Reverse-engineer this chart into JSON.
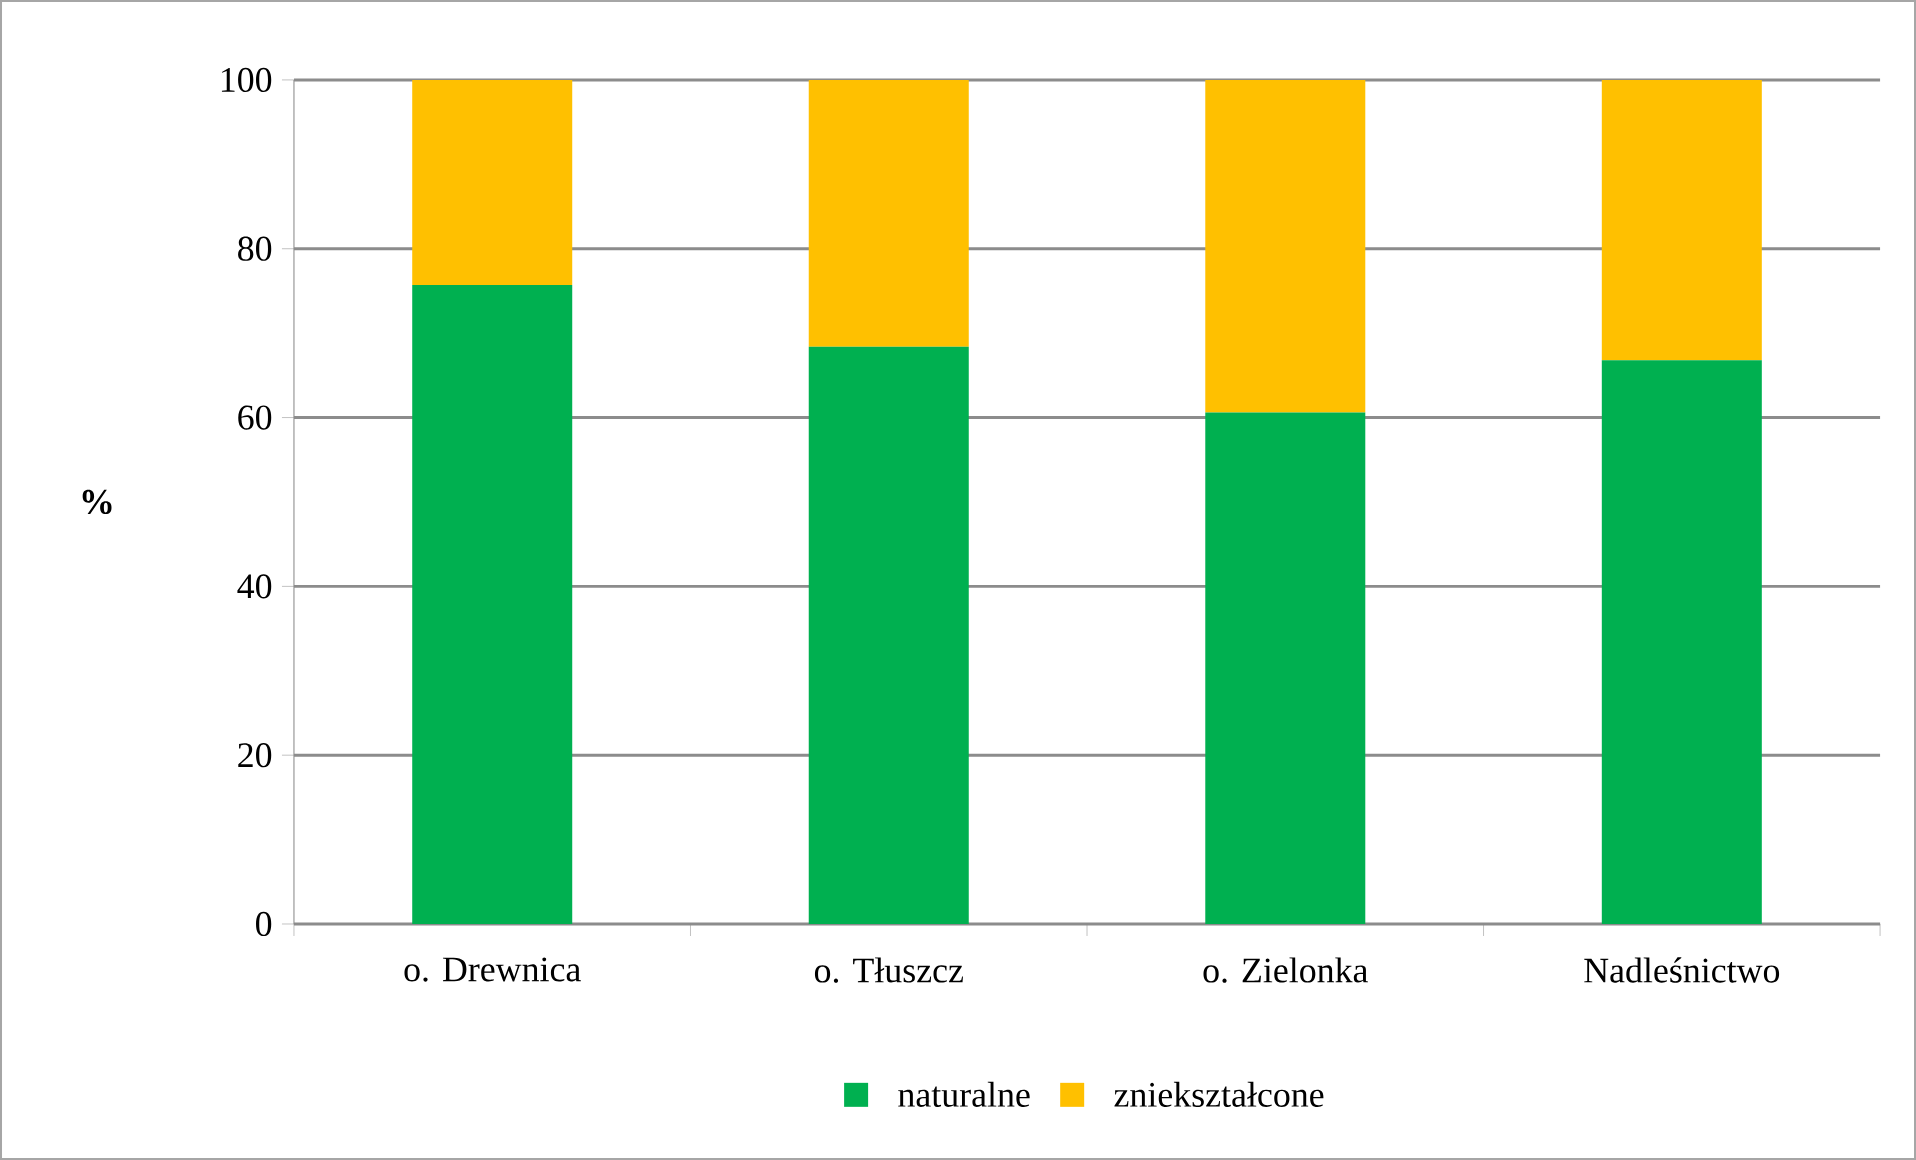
{
  "chart_data": {
    "type": "bar",
    "stacked": true,
    "ylabel": "%",
    "categories": [
      "o. Drewnica",
      "o. Tłuszcz",
      "o. Zielonka",
      "Nadleśnictwo"
    ],
    "series": [
      {
        "name": "naturalne",
        "color": "#00b050",
        "values": [
          75.7,
          68.4,
          60.6,
          66.8
        ]
      },
      {
        "name": "zniekształcone",
        "color": "#ffc000",
        "values": [
          24.3,
          31.6,
          39.4,
          33.2
        ]
      }
    ],
    "ylim": [
      0,
      100
    ],
    "yticks": [
      0,
      20,
      40,
      60,
      80,
      100
    ],
    "grid": "y",
    "legend": "bottom"
  }
}
